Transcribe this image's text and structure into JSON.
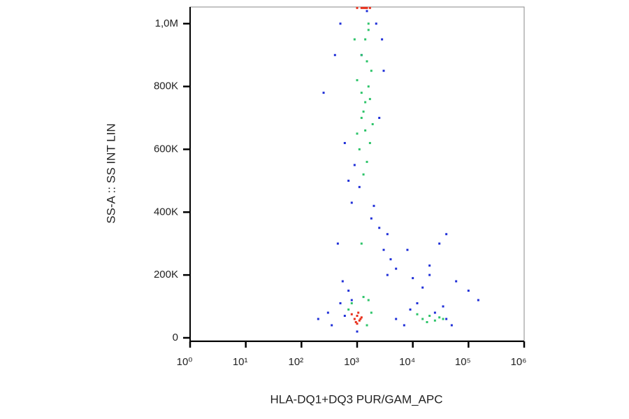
{
  "chart_data": {
    "type": "scatter",
    "x_label": "HLA-DQ1+DQ3 PUR/GAM_APC",
    "y_label": "SS-A :: SS INT LIN",
    "x_scale": "log",
    "xlim": [
      1,
      1000000
    ],
    "xticks": [
      {
        "value": 1,
        "label": "10⁰"
      },
      {
        "value": 10,
        "label": "10¹"
      },
      {
        "value": 100,
        "label": "10²"
      },
      {
        "value": 1000,
        "label": "10³"
      },
      {
        "value": 10000,
        "label": "10⁴"
      },
      {
        "value": 100000,
        "label": "10⁵"
      },
      {
        "value": 1000000,
        "label": "10⁶"
      }
    ],
    "ylim": [
      -9000,
      1053000
    ],
    "yticks": [
      0,
      {
        "value": 200000,
        "label": "200K"
      },
      {
        "value": 400000,
        "label": "400K"
      },
      {
        "value": 600000,
        "label": "600K"
      },
      {
        "value": 800000,
        "label": "800K"
      },
      {
        "value": 1000000,
        "label": "1,0M"
      }
    ],
    "series": [
      {
        "color": "#1f2fd8",
        "x": [
          250,
          400,
          500,
          600,
          700,
          800,
          3000,
          2800,
          2500,
          450,
          550,
          3500,
          4000,
          5000,
          8000,
          10000,
          15000,
          20000,
          30000,
          40000,
          60000,
          100000,
          150000,
          2000,
          2500,
          3000,
          1800,
          200,
          300,
          350,
          500,
          700,
          1200,
          5000,
          7000,
          9000,
          12000,
          25000,
          50000,
          35000,
          900,
          1100,
          1500,
          2200,
          600,
          800,
          1000,
          3500,
          20000,
          40000
        ],
        "values": [
          780000,
          900000,
          1000000,
          620000,
          500000,
          430000,
          850000,
          950000,
          700000,
          300000,
          180000,
          330000,
          250000,
          220000,
          280000,
          190000,
          160000,
          230000,
          300000,
          330000,
          180000,
          150000,
          120000,
          420000,
          350000,
          280000,
          380000,
          60000,
          80000,
          40000,
          110000,
          150000,
          900000,
          60000,
          40000,
          90000,
          110000,
          80000,
          40000,
          100000,
          550000,
          480000,
          1040000,
          1000000,
          70000,
          120000,
          20000,
          200000,
          200000,
          60000
        ]
      },
      {
        "color": "#2ec46a",
        "x": [
          1000,
          1200,
          1400,
          1600,
          1800,
          1100,
          1300,
          1500,
          1700,
          1900,
          1200,
          1400,
          1600,
          1500,
          1300,
          1700,
          1000,
          1200,
          1400,
          1600,
          15000,
          20000,
          25000,
          30000,
          12000,
          18000,
          35000,
          700,
          800,
          1300,
          1600,
          1500,
          1800,
          1200,
          900
        ],
        "values": [
          650000,
          700000,
          750000,
          800000,
          850000,
          600000,
          720000,
          880000,
          760000,
          680000,
          900000,
          950000,
          980000,
          560000,
          520000,
          620000,
          820000,
          780000,
          660000,
          1000000,
          60000,
          70000,
          55000,
          65000,
          75000,
          50000,
          60000,
          90000,
          110000,
          130000,
          120000,
          40000,
          80000,
          300000,
          950000
        ]
      },
      {
        "color": "#e8301c",
        "x": [
          900,
          1000,
          1100,
          1200,
          800,
          950,
          1050,
          1150,
          1000,
          1300,
          1500,
          1700,
          1000,
          1200,
          1400
        ],
        "values": [
          60000,
          70000,
          55000,
          65000,
          75000,
          50000,
          80000,
          60000,
          45000,
          1050000,
          1050000,
          1050000,
          1050000,
          1050000,
          1050000
        ]
      }
    ]
  }
}
